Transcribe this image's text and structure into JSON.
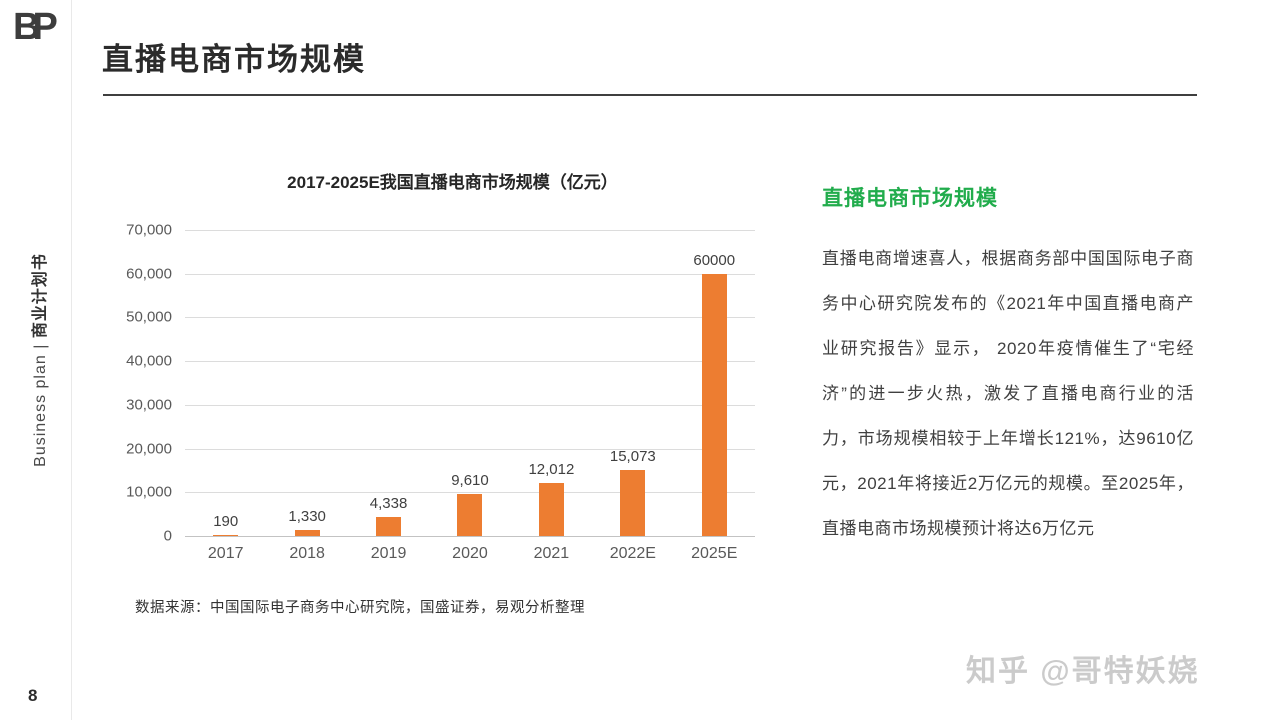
{
  "logo": {
    "text": "BP"
  },
  "header": {
    "title": "直播电商市场规模"
  },
  "sidebar": {
    "vertical_label_en": "Business plan | ",
    "vertical_label_zh": "商业计划书",
    "page_number": "8"
  },
  "chart_data": {
    "type": "bar",
    "title": "2017-2025E我国直播电商市场规模（亿元）",
    "categories": [
      "2017",
      "2018",
      "2019",
      "2020",
      "2021",
      "2022E",
      "2025E"
    ],
    "values": [
      190,
      1330,
      4338,
      9610,
      12012,
      15073,
      60000
    ],
    "value_labels": [
      "190",
      "1,330",
      "4,338",
      "9,610",
      "12,012",
      "15,073",
      "60000"
    ],
    "ylim": [
      0,
      70000
    ],
    "ytick_labels": [
      "0",
      "10,000",
      "20,000",
      "30,000",
      "40,000",
      "50,000",
      "60,000",
      "70,000"
    ],
    "bar_color": "#ED7D31",
    "grid": true,
    "legend": "none",
    "xlabel": "",
    "ylabel": ""
  },
  "source_note": "数据来源：中国国际电子商务中心研究院，国盛证券，易观分析整理",
  "panel": {
    "heading": "直播电商市场规模",
    "heading_color": "#21AC4C",
    "body": "直播电商增速喜人，根据商务部中国国际电子商务中心研究院发布的《2021年中国直播电商产业研究报告》显示，  2020年疫情催生了“宅经济”的进一步火热，激发了直播电商行业的活力，市场规模相较于上年增长121%，达9610亿元，2021年将接近2万亿元的规模。至2025年，直播电商市场规模预计将达6万亿元"
  },
  "watermark": {
    "text": "知乎 @哥特妖娆"
  }
}
